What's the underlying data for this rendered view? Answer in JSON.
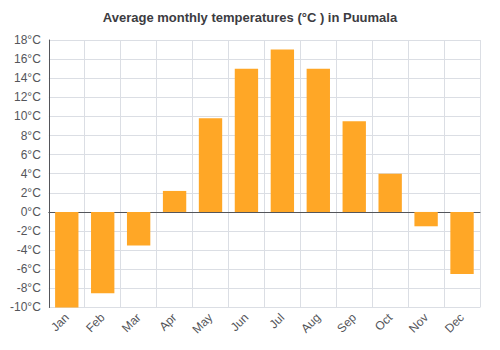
{
  "chart_data": {
    "type": "bar",
    "title": "Average monthly temperatures (°C ) in Puumala",
    "categories": [
      "Jan",
      "Feb",
      "Mar",
      "Apr",
      "May",
      "Jun",
      "Jul",
      "Aug",
      "Sep",
      "Oct",
      "Nov",
      "Dec"
    ],
    "values": [
      -10,
      -8.5,
      -3.5,
      2.2,
      9.8,
      15.0,
      17.0,
      15.0,
      9.5,
      4.0,
      -1.5,
      -6.5
    ],
    "color": "#FFA726",
    "ylim": [
      -10,
      18
    ],
    "yticks": [
      {
        "value": -10,
        "label": "-10°C"
      },
      {
        "value": -8,
        "label": "-8°C"
      },
      {
        "value": -6,
        "label": "-6°C"
      },
      {
        "value": -4,
        "label": "-4°C"
      },
      {
        "value": -2,
        "label": "-2°C"
      },
      {
        "value": 0,
        "label": "0°C"
      },
      {
        "value": 2,
        "label": "2°C"
      },
      {
        "value": 4,
        "label": "4°C"
      },
      {
        "value": 6,
        "label": "6°C"
      },
      {
        "value": 8,
        "label": "8°C"
      },
      {
        "value": 10,
        "label": "10°C"
      },
      {
        "value": 12,
        "label": "12°C"
      },
      {
        "value": 14,
        "label": "14°C"
      },
      {
        "value": 16,
        "label": "16°C"
      },
      {
        "value": 18,
        "label": "18°C"
      }
    ],
    "grid": true
  }
}
